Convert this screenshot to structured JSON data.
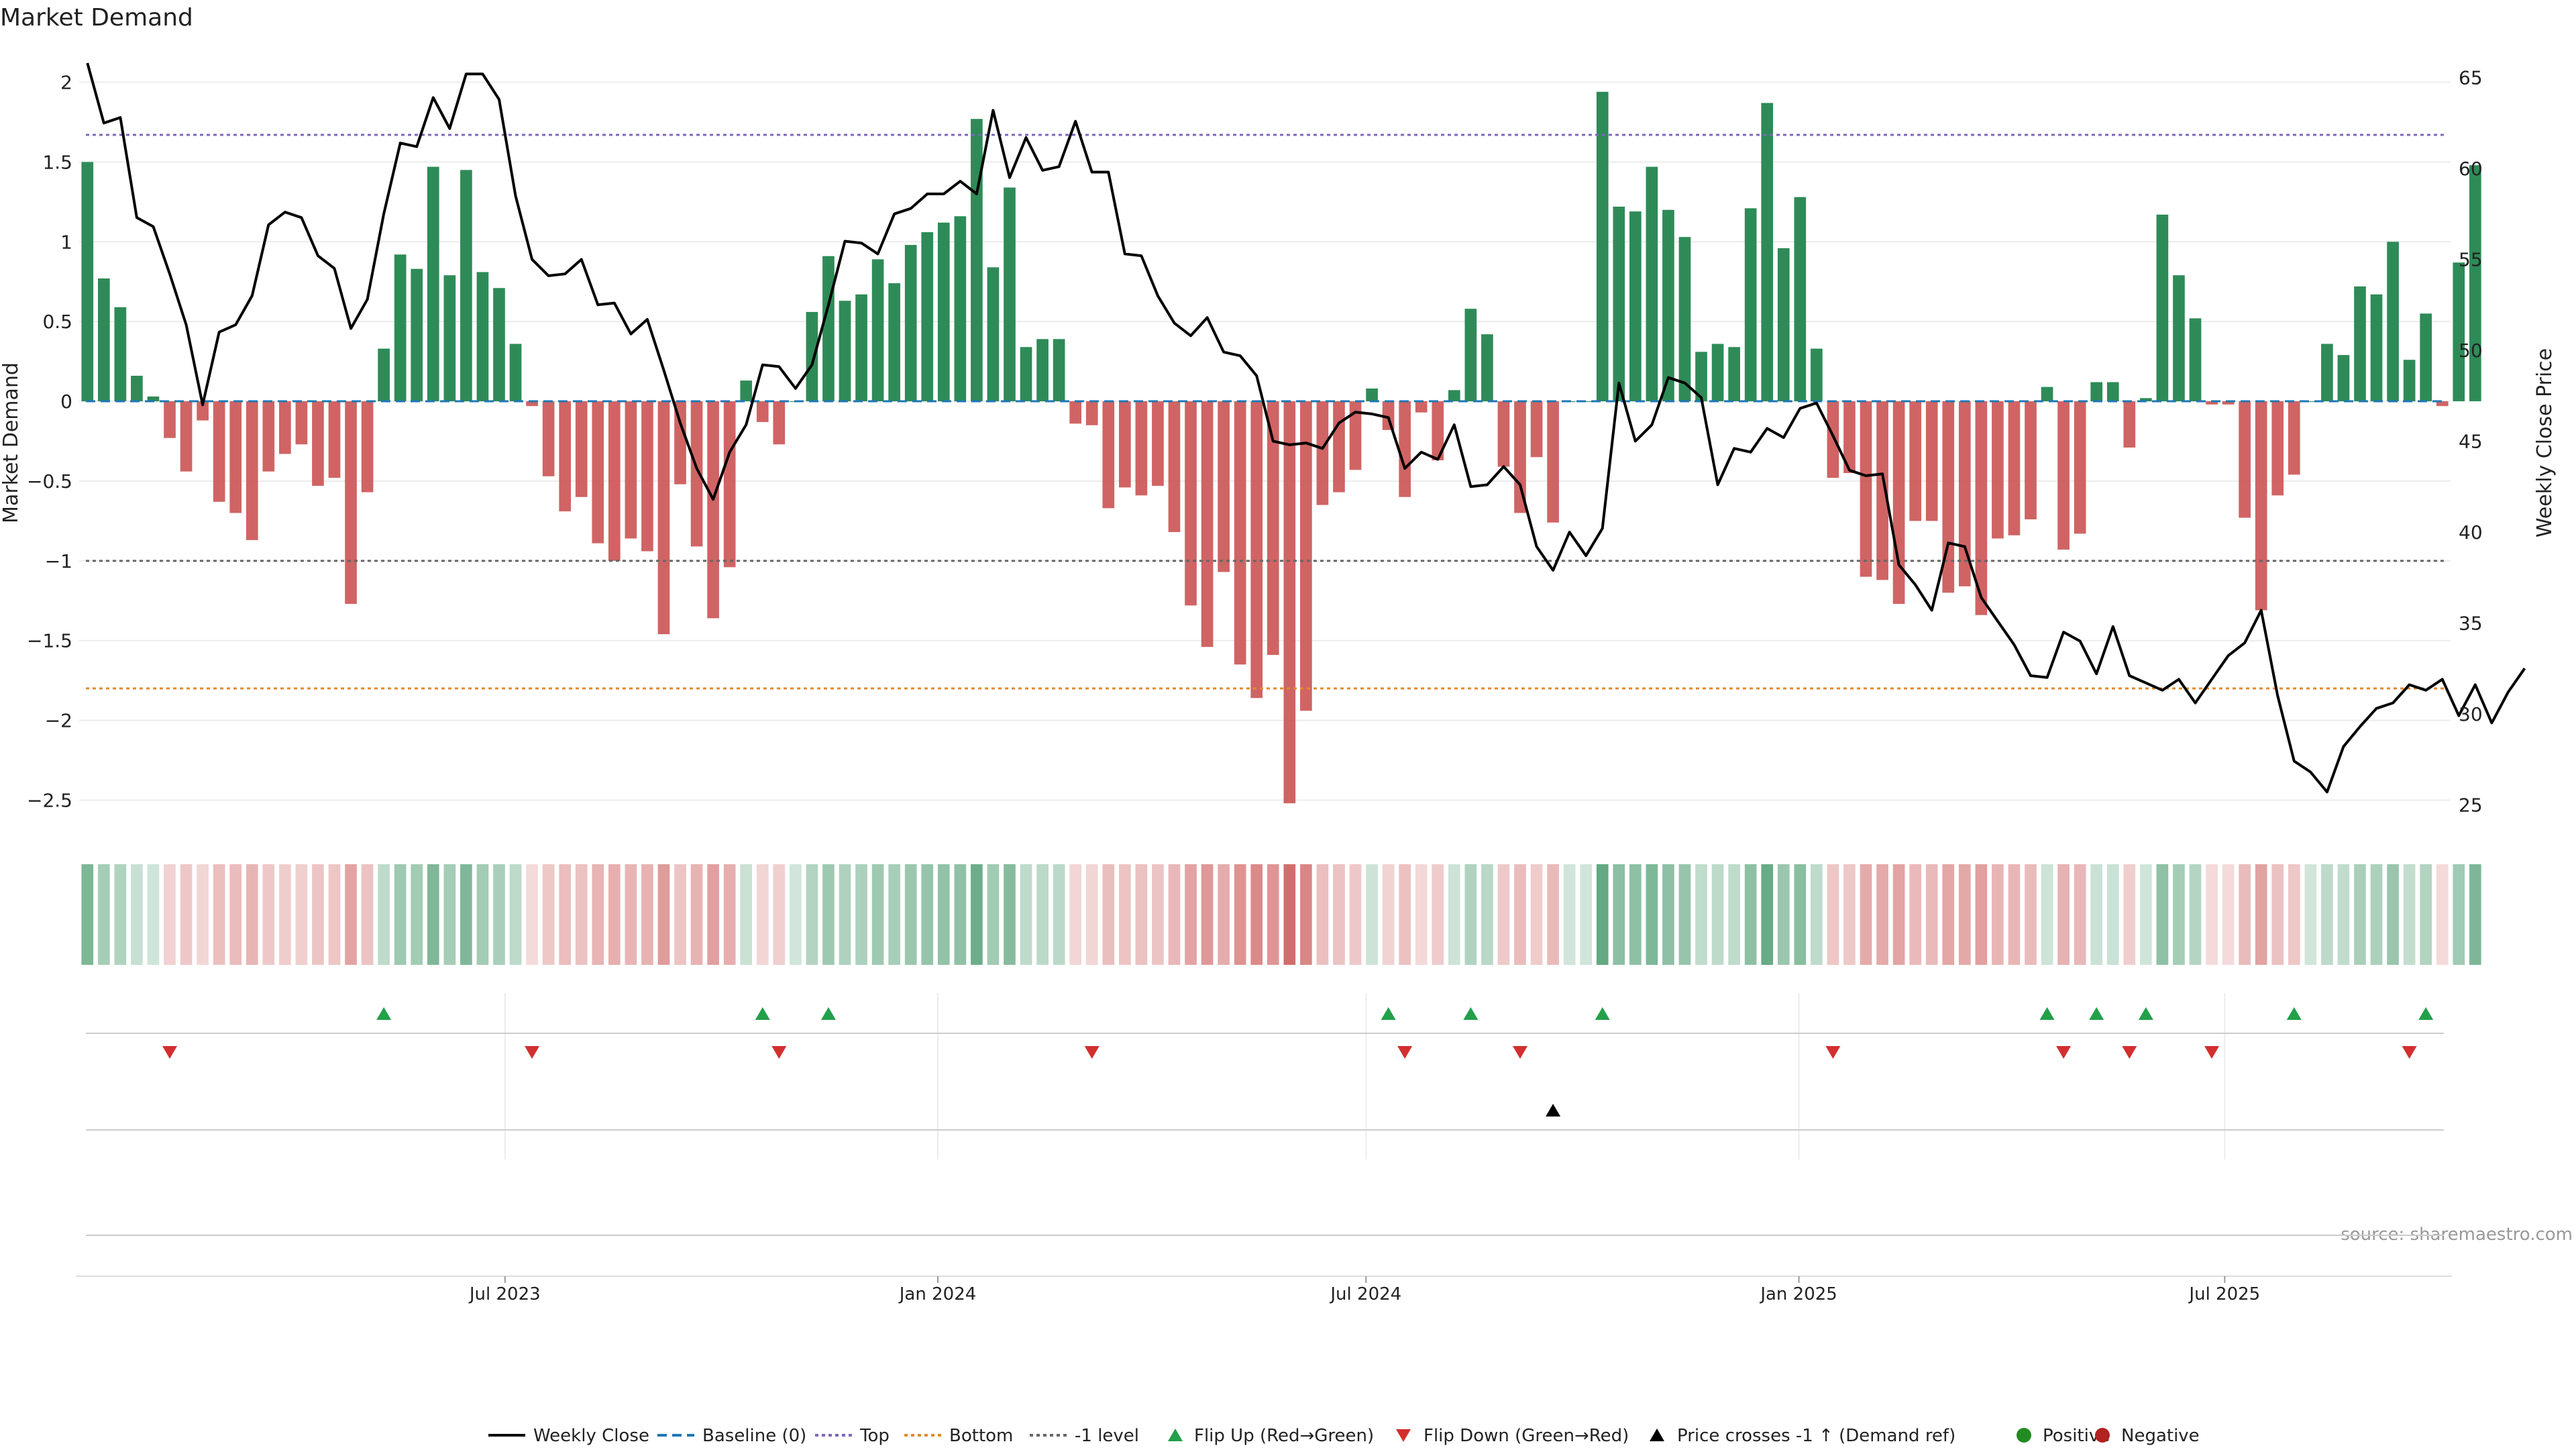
{
  "colors": {
    "positive": "#2e8b57",
    "negative": "#cd5c5c",
    "price_line": "#000000",
    "top_line": "#7b68b8",
    "bottom_line": "#e08a2c",
    "minus1_line": "#666666",
    "baseline": "#1f77b4",
    "flip_up": "#22a04a",
    "flip_down": "#d32f2f",
    "cross_marker": "#000000",
    "positive_dot": "#228b22",
    "negative_dot": "#b22222"
  },
  "chart_data": {
    "type": "bar",
    "title": "Market Demand",
    "ylabel": "Market Demand",
    "y2label": "Weekly Close Price",
    "ylim": [
      -2.7,
      2.2
    ],
    "y2lim": [
      23.5,
      66.5
    ],
    "yticks": [
      2,
      1.5,
      1,
      0.5,
      0,
      -0.5,
      -1,
      -1.5,
      -2,
      -2.5
    ],
    "ytick_labels": [
      "2",
      "1.5",
      "1",
      "0.5",
      "0",
      "−0.5",
      "−1",
      "−1.5",
      "−2",
      "−2.5"
    ],
    "y2ticks": [
      65,
      60,
      55,
      50,
      45,
      40,
      35,
      30,
      25
    ],
    "xlim": [
      "2023-01-01",
      "2025-10-05"
    ],
    "xticks": [
      {
        "date": "2023-07-01",
        "label": "Jul 2023"
      },
      {
        "date": "2024-01-01",
        "label": "Jan 2024"
      },
      {
        "date": "2024-07-01",
        "label": "Jul 2024"
      },
      {
        "date": "2025-01-01",
        "label": "Jan 2025"
      },
      {
        "date": "2025-07-01",
        "label": "Jul 2025"
      }
    ],
    "levels": {
      "top": 1.67,
      "bottom": -1.8,
      "minus1": -1.0,
      "baseline": 0
    },
    "start_week": "2023-01-01",
    "demand": [
      1.5,
      0.77,
      0.59,
      0.16,
      0.03,
      -0.23,
      -0.44,
      -0.12,
      -0.63,
      -0.7,
      -0.87,
      -0.44,
      -0.33,
      -0.27,
      -0.53,
      -0.48,
      -1.27,
      -0.57,
      0.33,
      0.92,
      0.83,
      1.47,
      0.79,
      1.45,
      0.81,
      0.71,
      0.36,
      -0.03,
      -0.47,
      -0.69,
      -0.6,
      -0.89,
      -1.0,
      -0.86,
      -0.94,
      -1.46,
      -0.52,
      -0.91,
      -1.36,
      -1.04,
      0.13,
      -0.13,
      -0.27,
      0.0,
      0.56,
      0.91,
      0.63,
      0.67,
      0.89,
      0.74,
      0.98,
      1.06,
      1.12,
      1.16,
      1.77,
      0.84,
      1.34,
      0.34,
      0.39,
      0.39,
      -0.14,
      -0.15,
      -0.67,
      -0.54,
      -0.59,
      -0.53,
      -0.82,
      -1.28,
      -1.54,
      -1.07,
      -1.65,
      -1.86,
      -1.59,
      -2.52,
      -1.94,
      -0.65,
      -0.57,
      -0.43,
      0.08,
      -0.18,
      -0.6,
      -0.07,
      -0.37,
      0.07,
      0.58,
      0.42,
      -0.41,
      -0.7,
      -0.35,
      -0.76,
      0.0,
      0.0,
      1.94,
      1.22,
      1.19,
      1.47,
      1.2,
      1.03,
      0.31,
      0.36,
      0.34,
      1.21,
      1.87,
      0.96,
      1.28,
      0.33,
      -0.48,
      -0.45,
      -1.1,
      -1.12,
      -1.27,
      -0.75,
      -0.75,
      -1.2,
      -1.16,
      -1.34,
      -0.86,
      -0.84,
      -0.74,
      0.09,
      -0.93,
      -0.83,
      0.12,
      0.12,
      -0.29,
      0.02,
      1.17,
      0.79,
      0.52,
      -0.02,
      -0.02,
      -0.73,
      -1.31,
      -0.59,
      -0.46,
      0.0,
      0.36,
      0.29,
      0.72,
      0.67,
      1.0,
      0.26,
      0.55,
      -0.03,
      0.87,
      1.48
    ],
    "weekly_close": [
      65.8,
      62.5,
      62.8,
      57.3,
      56.8,
      54.2,
      51.4,
      47.0,
      51.0,
      51.4,
      53.0,
      56.9,
      57.6,
      57.3,
      55.2,
      54.5,
      51.2,
      52.8,
      57.5,
      61.4,
      61.2,
      63.9,
      62.2,
      65.2,
      65.2,
      63.8,
      58.5,
      55.0,
      54.1,
      54.2,
      55.0,
      52.5,
      52.6,
      50.9,
      51.7,
      48.9,
      46.0,
      43.5,
      41.8,
      44.4,
      45.9,
      49.2,
      49.1,
      47.9,
      49.2,
      52.5,
      56.0,
      55.9,
      55.3,
      57.5,
      57.8,
      58.6,
      58.6,
      59.3,
      58.6,
      63.2,
      59.5,
      61.7,
      59.9,
      60.1,
      62.6,
      59.8,
      59.8,
      55.3,
      55.2,
      53.0,
      51.5,
      50.8,
      51.8,
      49.9,
      49.7,
      48.6,
      45.0,
      44.8,
      44.9,
      44.6,
      46.0,
      46.6,
      46.5,
      46.3,
      43.5,
      44.4,
      44.0,
      45.9,
      42.5,
      42.6,
      43.6,
      42.6,
      39.2,
      37.9,
      40.0,
      38.7,
      40.2,
      48.2,
      45.0,
      45.9,
      48.5,
      48.2,
      47.4,
      42.6,
      44.6,
      44.4,
      45.7,
      45.2,
      46.8,
      47.1,
      45.3,
      43.4,
      43.1,
      43.2,
      38.2,
      37.1,
      35.7,
      39.4,
      39.2,
      36.4,
      35.1,
      33.8,
      32.1,
      32.0,
      34.5,
      34.0,
      32.2,
      34.8,
      32.1,
      31.7,
      31.3,
      31.9,
      30.6,
      31.9,
      33.2,
      33.9,
      35.7,
      31.0,
      27.4,
      26.8,
      25.7,
      28.2,
      29.3,
      30.3,
      30.6,
      31.6,
      31.3,
      31.9,
      29.9,
      31.6,
      29.5,
      31.2,
      32.5
    ],
    "flip_up_weeks": [
      18,
      41,
      45,
      79,
      84,
      92,
      119,
      122,
      125,
      134,
      142
    ],
    "flip_down_weeks": [
      5,
      27,
      42,
      61,
      80,
      87,
      106,
      120,
      124,
      129,
      141
    ],
    "cross_weeks": [
      89
    ]
  },
  "source": "source: sharemaestro.com",
  "legend": [
    {
      "key": "weekly_close",
      "label": "Weekly Close"
    },
    {
      "key": "baseline",
      "label": "Baseline (0)"
    },
    {
      "key": "top",
      "label": "Top"
    },
    {
      "key": "bottom",
      "label": "Bottom"
    },
    {
      "key": "minus1",
      "label": "-1 level"
    },
    {
      "key": "flip_up",
      "label": "Flip Up (Red→Green)"
    },
    {
      "key": "flip_down",
      "label": "Flip Down (Green→Red)"
    },
    {
      "key": "cross",
      "label": "Price crosses -1 ↑ (Demand ref)"
    },
    {
      "key": "positive",
      "label": "Positive"
    },
    {
      "key": "negative",
      "label": "Negative"
    }
  ]
}
